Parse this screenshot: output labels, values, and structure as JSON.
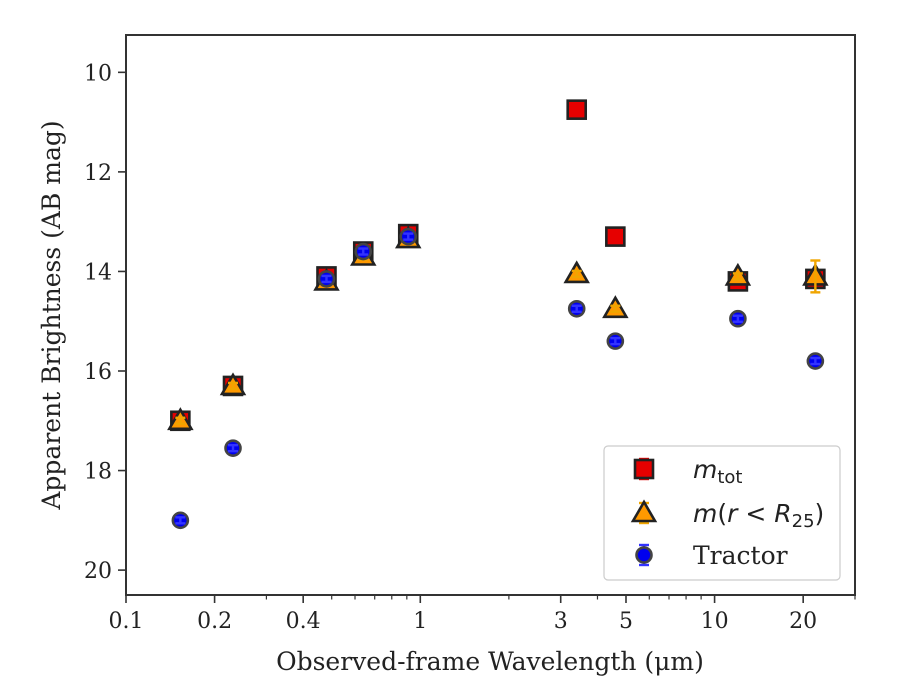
{
  "chart_data": {
    "type": "scatter",
    "xlabel": "Observed-frame Wavelength (μm)",
    "ylabel": "Apparent Brightness (AB mag)",
    "xscale": "log",
    "xlim": [
      0.1,
      30
    ],
    "ylim": [
      20.5,
      9.25
    ],
    "y_inverted": true,
    "grid": false,
    "legend_position": "lower-right",
    "xticks": [
      {
        "value": 0.1,
        "label": "0.1"
      },
      {
        "value": 0.2,
        "label": "0.2"
      },
      {
        "value": 0.4,
        "label": "0.4"
      },
      {
        "value": 1,
        "label": "1"
      },
      {
        "value": 3,
        "label": "3"
      },
      {
        "value": 5,
        "label": "5"
      },
      {
        "value": 10,
        "label": "10"
      },
      {
        "value": 20,
        "label": "20"
      }
    ],
    "yticks": [
      {
        "value": 10,
        "label": "10"
      },
      {
        "value": 12,
        "label": "12"
      },
      {
        "value": 14,
        "label": "14"
      },
      {
        "value": 16,
        "label": "16"
      },
      {
        "value": 18,
        "label": "18"
      },
      {
        "value": 20,
        "label": "20"
      }
    ],
    "series": [
      {
        "name": "m_tot",
        "legend": {
          "italic": "m",
          "sub": "tot",
          "after": ""
        },
        "marker": "square",
        "color": "#e60000",
        "errcolor": "#e60000",
        "points": [
          {
            "x": 0.153,
            "y": 17.0,
            "err": 0.05
          },
          {
            "x": 0.231,
            "y": 16.3,
            "err": 0.08
          },
          {
            "x": 0.48,
            "y": 14.1,
            "err": 0.02
          },
          {
            "x": 0.64,
            "y": 13.6,
            "err": 0.02
          },
          {
            "x": 0.91,
            "y": 13.25,
            "err": 0.02
          },
          {
            "x": 3.4,
            "y": 10.75,
            "err": 0.03
          },
          {
            "x": 4.6,
            "y": 13.3,
            "err": 0.03
          },
          {
            "x": 12.0,
            "y": 14.2,
            "err": 0.05
          },
          {
            "x": 22.0,
            "y": 14.15,
            "err": 0.06
          }
        ]
      },
      {
        "name": "m(r < R_25)",
        "legend": {
          "italic": "m",
          "pre": "(",
          "italic2": "r",
          "mid": " < ",
          "italic3": "R",
          "sub": "25",
          "after": ")"
        },
        "marker": "triangle",
        "color": "#ff9900",
        "errcolor": "#f0a500",
        "points": [
          {
            "x": 0.153,
            "y": 17.0,
            "err": 0.05
          },
          {
            "x": 0.231,
            "y": 16.3,
            "err": 0.06
          },
          {
            "x": 0.48,
            "y": 14.2,
            "err": 0.02
          },
          {
            "x": 0.64,
            "y": 13.7,
            "err": 0.02
          },
          {
            "x": 0.91,
            "y": 13.35,
            "err": 0.02
          },
          {
            "x": 3.4,
            "y": 14.05,
            "err": 0.03
          },
          {
            "x": 4.6,
            "y": 14.75,
            "err": 0.04
          },
          {
            "x": 12.0,
            "y": 14.1,
            "err": 0.06
          },
          {
            "x": 22.0,
            "y": 14.1,
            "err": 0.32
          }
        ]
      },
      {
        "name": "Tractor",
        "legend": {
          "text": "Tractor"
        },
        "marker": "circle",
        "color": "#0000ee",
        "errcolor": "#3333ff",
        "points": [
          {
            "x": 0.153,
            "y": 19.0,
            "err": 0.04
          },
          {
            "x": 0.231,
            "y": 17.55,
            "err": 0.04
          },
          {
            "x": 0.48,
            "y": 14.15,
            "err": 0.02
          },
          {
            "x": 0.64,
            "y": 13.6,
            "err": 0.02
          },
          {
            "x": 0.91,
            "y": 13.3,
            "err": 0.02
          },
          {
            "x": 3.4,
            "y": 14.75,
            "err": 0.03
          },
          {
            "x": 4.6,
            "y": 15.4,
            "err": 0.03
          },
          {
            "x": 12.0,
            "y": 14.95,
            "err": 0.04
          },
          {
            "x": 22.0,
            "y": 15.8,
            "err": 0.05
          }
        ]
      }
    ]
  }
}
